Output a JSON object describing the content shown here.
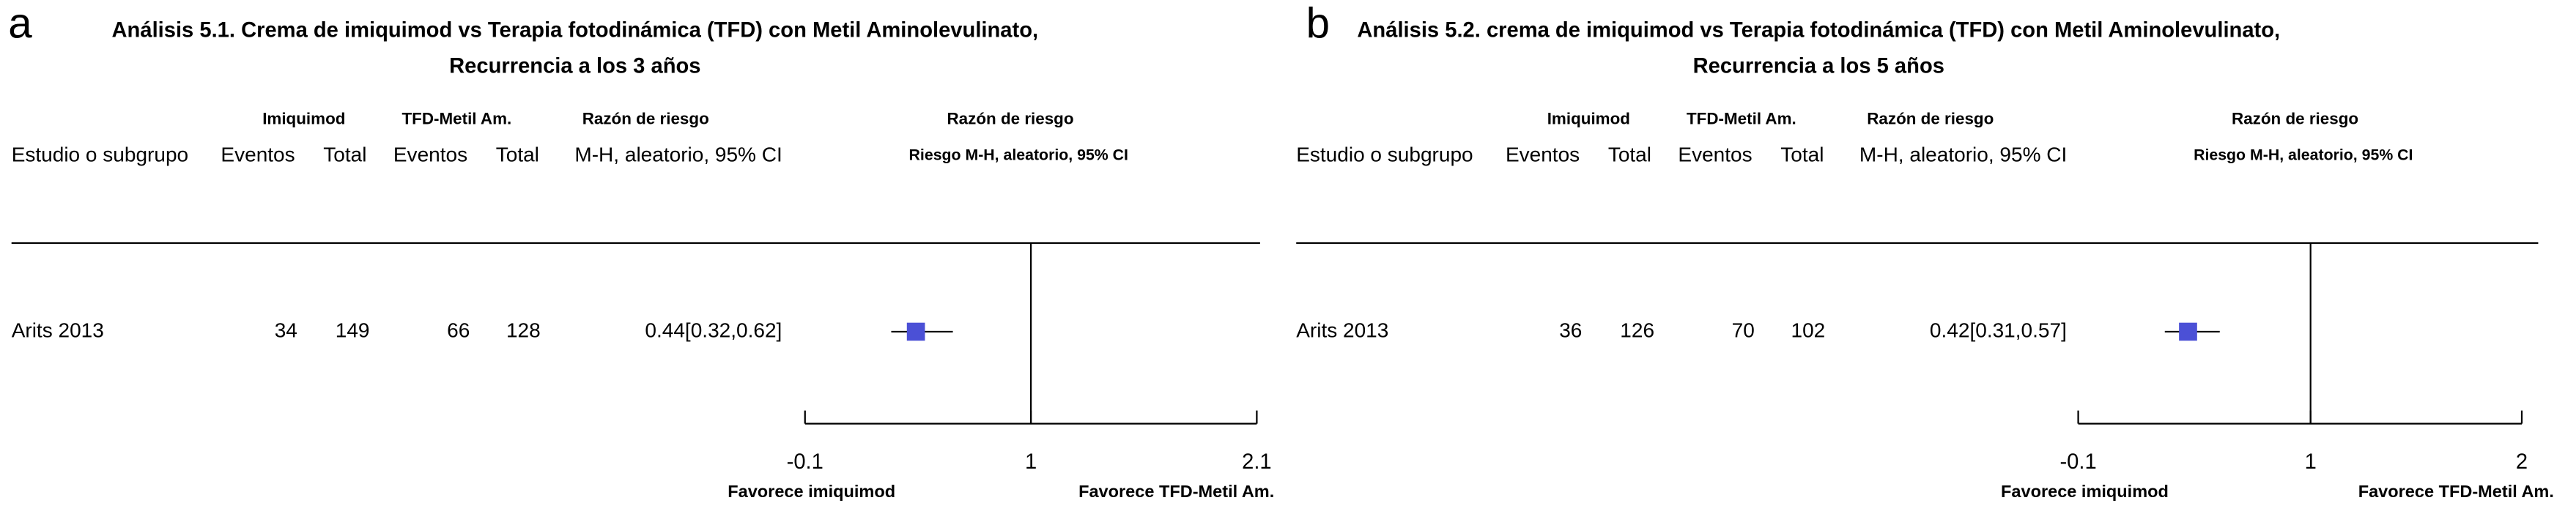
{
  "chart_data": [
    {
      "type": "forest",
      "panel": "a",
      "title": [
        "Análisis 5.1. Crema de imiquimod vs Terapia fotodinámica (TFD) con Metil Aminolevulinato,",
        "Recurrencia a los 3 años"
      ],
      "group_headers": [
        "Imiquimod",
        "TFD-Metil Am.",
        "Razón de riesgo",
        "Razón de riesgo"
      ],
      "columns": [
        "Estudio o subgrupo",
        "Eventos",
        "Total",
        "Eventos",
        "Total",
        "M-H, aleatorio, 95% CI",
        "Riesgo M-H, aleatorio, 95% CI"
      ],
      "studies": [
        {
          "name": "Arits 2013",
          "events1": 34,
          "total1": 149,
          "events2": 66,
          "total2": 128,
          "rr": 0.44,
          "ci_low": 0.32,
          "ci_high": 0.62,
          "value_label": "0.44[0.32,0.62]"
        }
      ],
      "color": "#4b50d6",
      "xlim": [
        -0.1,
        2.1
      ],
      "xticks": [
        -0.1,
        1,
        2.1
      ],
      "reference": 1,
      "favours": [
        "Favorece imiquimod",
        "Favorece TFD-Metil Am."
      ]
    },
    {
      "type": "forest",
      "panel": "b",
      "title": [
        "Análisis 5.2. crema de imiquimod vs Terapia fotodinámica (TFD) con Metil Aminolevulinato,",
        "Recurrencia a los 5 años"
      ],
      "group_headers": [
        "Imiquimod",
        "TFD-Metil Am.",
        "Razón de riesgo",
        "Razón de riesgo"
      ],
      "columns": [
        "Estudio o subgrupo",
        "Eventos",
        "Total",
        "Eventos",
        "Total",
        "M-H, aleatorio, 95% CI",
        "Riesgo M-H, aleatorio, 95% CI"
      ],
      "studies": [
        {
          "name": "Arits 2013",
          "events1": 36,
          "total1": 126,
          "events2": 70,
          "total2": 102,
          "rr": 0.42,
          "ci_low": 0.31,
          "ci_high": 0.57,
          "value_label": "0.42[0.31,0.57]"
        }
      ],
      "color": "#4b50d6",
      "xlim": [
        -0.1,
        2
      ],
      "xticks": [
        -0.1,
        1,
        2
      ],
      "reference": 1,
      "favours": [
        "Favorece imiquimod",
        "Favorece TFD-Metil Am."
      ]
    }
  ]
}
